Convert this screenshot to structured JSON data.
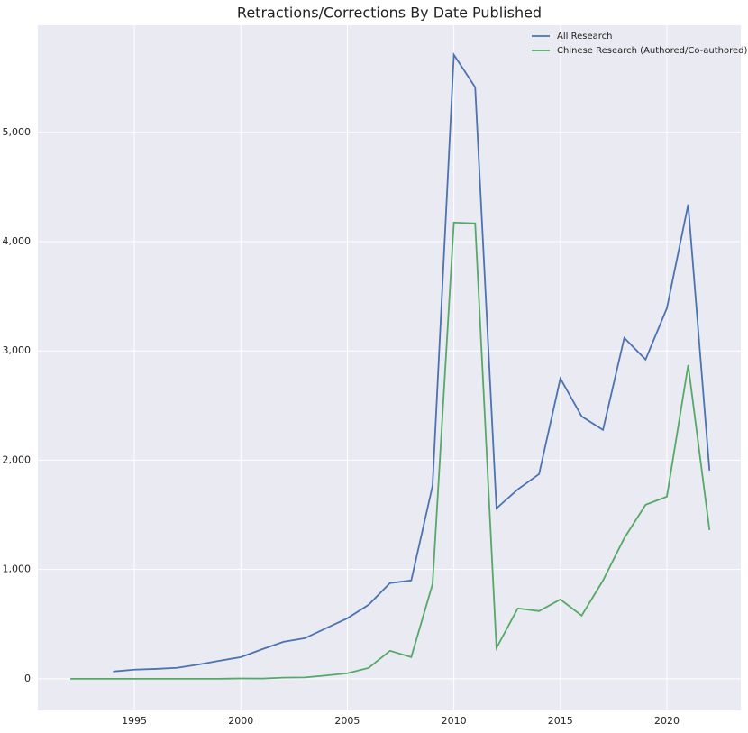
{
  "chart_data": {
    "type": "line",
    "title": "Retractions/Corrections By Date Published",
    "x": [
      1992,
      1993,
      1994,
      1995,
      1996,
      1997,
      1998,
      1999,
      2000,
      2001,
      2002,
      2003,
      2004,
      2005,
      2006,
      2007,
      2008,
      2009,
      2010,
      2011,
      2012,
      2013,
      2014,
      2015,
      2016,
      2017,
      2018,
      2019,
      2020,
      2021,
      2022
    ],
    "series": [
      {
        "name": "All Research",
        "color": "#4c72b0",
        "values": [
          null,
          null,
          66,
          83,
          90,
          100,
          130,
          165,
          198,
          270,
          338,
          371,
          462,
          553,
          677,
          875,
          900,
          1766,
          5710,
          5413,
          1559,
          1733,
          1873,
          2748,
          2401,
          2277,
          3119,
          2921,
          3391,
          4340,
          1906
        ]
      },
      {
        "name": "Chinese Research (Authored/Co-authored)",
        "color": "#55a868",
        "values": [
          0,
          0,
          0,
          0,
          0,
          0,
          0,
          0,
          3,
          2,
          10,
          12,
          30,
          50,
          99,
          256,
          198,
          866,
          4175,
          4167,
          281,
          644,
          619,
          726,
          578,
          899,
          1287,
          1592,
          1667,
          2871,
          1361
        ]
      }
    ],
    "xlim": [
      1990.47,
      2023.47
    ],
    "xticks": [
      1995,
      2000,
      2005,
      2010,
      2015,
      2020
    ],
    "ylim": [
      -290,
      5980
    ],
    "yticks": [
      0,
      {
        "value": 1000,
        "label": "1,000"
      },
      {
        "value": 2000,
        "label": "2,000"
      },
      {
        "value": 3000,
        "label": "3,000"
      },
      {
        "value": 4000,
        "label": "4,000"
      },
      {
        "value": 5000,
        "label": "5,000"
      }
    ],
    "grid": true,
    "legend": "upper right",
    "background": "#eaeaf2"
  }
}
